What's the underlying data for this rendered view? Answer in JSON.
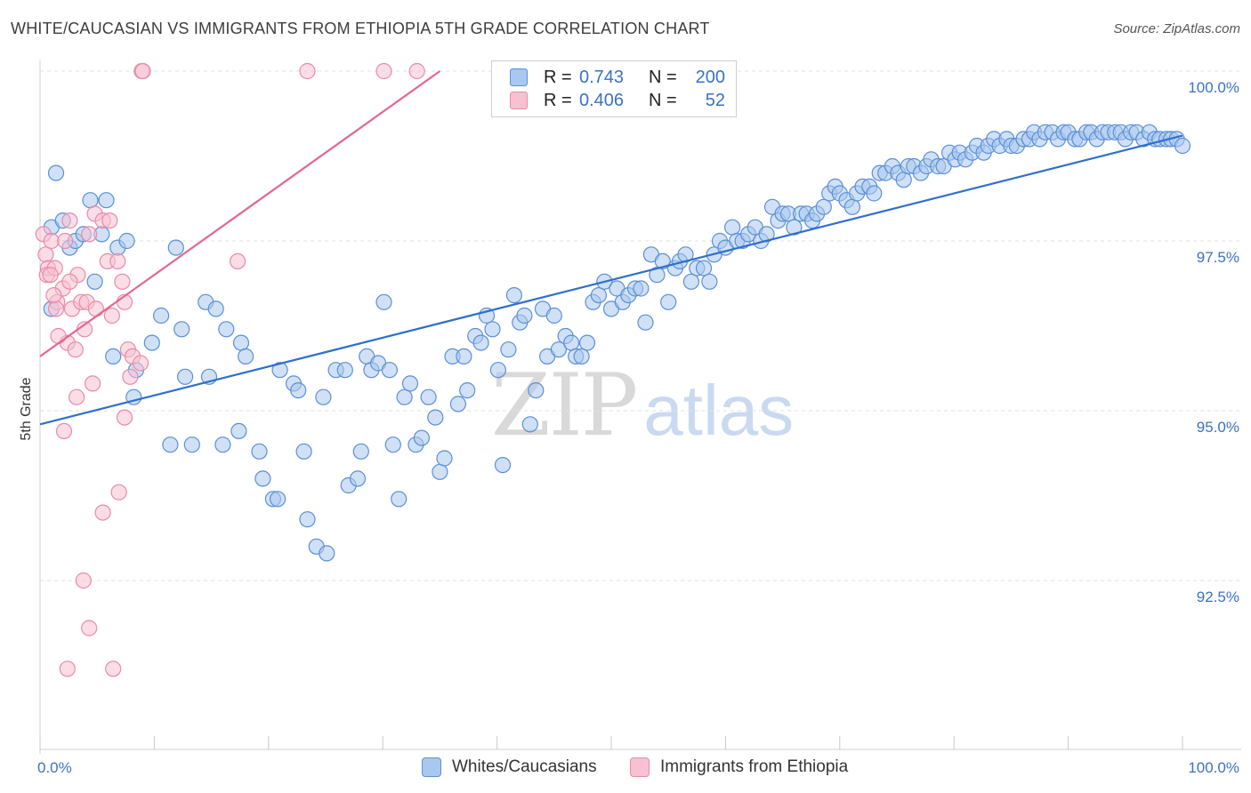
{
  "title": "WHITE/CAUCASIAN VS IMMIGRANTS FROM ETHIOPIA 5TH GRADE CORRELATION CHART",
  "source": "Source: ZipAtlas.com",
  "watermark": {
    "zip": "ZIP",
    "atlas": "atlas"
  },
  "colors": {
    "blue_fill": "#a9c8ee",
    "blue_stroke": "#5b8fd6",
    "blue_line": "#2f6fcc",
    "pink_fill": "#f7c1d1",
    "pink_stroke": "#e98aa8",
    "pink_line": "#e3678f",
    "tick_text": "#3a72c4",
    "grid": "#e2e2e2"
  },
  "legend": {
    "rows": [
      {
        "r_label": "R =",
        "r_value": "0.743",
        "n_label": "N =",
        "n_value": "200",
        "series": "blue"
      },
      {
        "r_label": "R =",
        "r_value": "0.406",
        "n_label": "N =",
        "n_value": "52",
        "series": "pink"
      }
    ]
  },
  "bottom_legend": [
    {
      "label": "Whites/Caucasians",
      "series": "blue"
    },
    {
      "label": "Immigrants from Ethiopia",
      "series": "pink"
    }
  ],
  "chart_data": {
    "type": "scatter",
    "title": "WHITE/CAUCASIAN VS IMMIGRANTS FROM ETHIOPIA 5TH GRADE CORRELATION CHART",
    "xlabel": "",
    "ylabel": "5th Grade",
    "xlim": [
      0,
      100
    ],
    "ylim": [
      90.0,
      100.3
    ],
    "x_tick_labels": [
      "0.0%",
      "100.0%"
    ],
    "y_ticks": [
      92.5,
      95.0,
      97.5,
      100.0
    ],
    "y_tick_labels": [
      "92.5%",
      "95.0%",
      "97.5%",
      "100.0%"
    ],
    "grid": true,
    "series": [
      {
        "name": "Whites/Caucasians",
        "color": "blue",
        "r": 0.743,
        "n": 200,
        "trend": {
          "x": [
            0,
            100
          ],
          "y": [
            94.8,
            99.05
          ]
        },
        "points": [
          [
            1.4,
            98.5
          ],
          [
            1.0,
            97.7
          ],
          [
            2.0,
            97.8
          ],
          [
            2.6,
            97.4
          ],
          [
            3.1,
            97.5
          ],
          [
            3.8,
            97.6
          ],
          [
            4.4,
            98.1
          ],
          [
            5.8,
            98.1
          ],
          [
            5.4,
            97.6
          ],
          [
            6.8,
            97.4
          ],
          [
            7.6,
            97.5
          ],
          [
            4.8,
            96.9
          ],
          [
            1.0,
            96.5
          ],
          [
            6.4,
            95.8
          ],
          [
            8.4,
            95.6
          ],
          [
            8.2,
            95.2
          ],
          [
            9.8,
            96.0
          ],
          [
            10.6,
            96.4
          ],
          [
            11.9,
            97.4
          ],
          [
            12.4,
            96.2
          ],
          [
            11.4,
            94.5
          ],
          [
            12.7,
            95.5
          ],
          [
            13.3,
            94.5
          ],
          [
            14.8,
            95.5
          ],
          [
            14.5,
            96.6
          ],
          [
            15.4,
            96.5
          ],
          [
            16.0,
            94.5
          ],
          [
            16.3,
            96.2
          ],
          [
            17.4,
            94.7
          ],
          [
            17.6,
            96.0
          ],
          [
            18.0,
            95.8
          ],
          [
            19.2,
            94.4
          ],
          [
            19.5,
            94.0
          ],
          [
            20.4,
            93.7
          ],
          [
            20.8,
            93.7
          ],
          [
            21.0,
            95.6
          ],
          [
            22.2,
            95.4
          ],
          [
            22.6,
            95.3
          ],
          [
            23.1,
            94.4
          ],
          [
            23.4,
            93.4
          ],
          [
            24.2,
            93.0
          ],
          [
            24.8,
            95.2
          ],
          [
            25.1,
            92.9
          ],
          [
            25.9,
            95.6
          ],
          [
            26.7,
            95.6
          ],
          [
            27.0,
            93.9
          ],
          [
            27.8,
            94.0
          ],
          [
            28.1,
            94.4
          ],
          [
            28.6,
            95.8
          ],
          [
            29.0,
            95.6
          ],
          [
            29.6,
            95.7
          ],
          [
            30.1,
            96.6
          ],
          [
            30.6,
            95.6
          ],
          [
            30.9,
            94.5
          ],
          [
            31.4,
            93.7
          ],
          [
            31.9,
            95.2
          ],
          [
            32.4,
            95.4
          ],
          [
            32.9,
            94.5
          ],
          [
            33.4,
            94.6
          ],
          [
            34.0,
            95.2
          ],
          [
            34.6,
            94.9
          ],
          [
            35.0,
            94.1
          ],
          [
            35.4,
            94.3
          ],
          [
            36.1,
            95.8
          ],
          [
            36.6,
            95.1
          ],
          [
            37.1,
            95.8
          ],
          [
            37.4,
            95.3
          ],
          [
            38.1,
            96.1
          ],
          [
            38.6,
            96.0
          ],
          [
            39.1,
            96.4
          ],
          [
            39.6,
            96.2
          ],
          [
            40.1,
            95.6
          ],
          [
            40.5,
            94.2
          ],
          [
            41.0,
            95.9
          ],
          [
            41.5,
            96.7
          ],
          [
            42.0,
            96.3
          ],
          [
            42.4,
            96.4
          ],
          [
            42.9,
            94.8
          ],
          [
            43.4,
            95.3
          ],
          [
            44.0,
            96.5
          ],
          [
            44.4,
            95.8
          ],
          [
            45.0,
            96.4
          ],
          [
            45.4,
            95.9
          ],
          [
            46.0,
            96.1
          ],
          [
            46.5,
            96.0
          ],
          [
            46.9,
            95.8
          ],
          [
            47.4,
            95.8
          ],
          [
            47.9,
            96.0
          ],
          [
            48.4,
            96.6
          ],
          [
            48.9,
            96.7
          ],
          [
            49.4,
            96.9
          ],
          [
            50.0,
            96.5
          ],
          [
            50.5,
            96.8
          ],
          [
            51.0,
            96.6
          ],
          [
            51.5,
            96.7
          ],
          [
            52.1,
            96.8
          ],
          [
            52.6,
            96.8
          ],
          [
            53.0,
            96.3
          ],
          [
            53.5,
            97.3
          ],
          [
            54.0,
            97.0
          ],
          [
            54.5,
            97.2
          ],
          [
            55.0,
            96.6
          ],
          [
            55.6,
            97.1
          ],
          [
            56.0,
            97.2
          ],
          [
            56.5,
            97.3
          ],
          [
            57.0,
            96.9
          ],
          [
            57.5,
            97.1
          ],
          [
            58.1,
            97.1
          ],
          [
            58.6,
            96.9
          ],
          [
            59.0,
            97.3
          ],
          [
            59.5,
            97.5
          ],
          [
            60.0,
            97.4
          ],
          [
            60.6,
            97.7
          ],
          [
            61.0,
            97.5
          ],
          [
            61.5,
            97.5
          ],
          [
            62.0,
            97.6
          ],
          [
            62.6,
            97.7
          ],
          [
            63.1,
            97.5
          ],
          [
            63.6,
            97.6
          ],
          [
            64.1,
            98.0
          ],
          [
            64.6,
            97.8
          ],
          [
            65.0,
            97.9
          ],
          [
            65.5,
            97.9
          ],
          [
            66.0,
            97.7
          ],
          [
            66.6,
            97.9
          ],
          [
            67.1,
            97.9
          ],
          [
            67.6,
            97.8
          ],
          [
            68.0,
            97.9
          ],
          [
            68.6,
            98.0
          ],
          [
            69.1,
            98.2
          ],
          [
            69.6,
            98.3
          ],
          [
            70.0,
            98.2
          ],
          [
            70.6,
            98.1
          ],
          [
            71.1,
            98.0
          ],
          [
            71.5,
            98.2
          ],
          [
            72.0,
            98.3
          ],
          [
            72.6,
            98.3
          ],
          [
            73.0,
            98.2
          ],
          [
            73.5,
            98.5
          ],
          [
            74.0,
            98.5
          ],
          [
            74.6,
            98.6
          ],
          [
            75.1,
            98.5
          ],
          [
            75.6,
            98.4
          ],
          [
            76.0,
            98.6
          ],
          [
            76.5,
            98.6
          ],
          [
            77.1,
            98.5
          ],
          [
            77.6,
            98.6
          ],
          [
            78.0,
            98.7
          ],
          [
            78.6,
            98.6
          ],
          [
            79.1,
            98.6
          ],
          [
            79.6,
            98.8
          ],
          [
            80.1,
            98.7
          ],
          [
            80.5,
            98.8
          ],
          [
            81.0,
            98.7
          ],
          [
            81.6,
            98.8
          ],
          [
            82.0,
            98.9
          ],
          [
            82.6,
            98.8
          ],
          [
            83.0,
            98.9
          ],
          [
            83.5,
            99.0
          ],
          [
            84.0,
            98.9
          ],
          [
            84.6,
            99.0
          ],
          [
            85.0,
            98.9
          ],
          [
            85.5,
            98.9
          ],
          [
            86.1,
            99.0
          ],
          [
            86.6,
            99.0
          ],
          [
            87.0,
            99.1
          ],
          [
            87.5,
            99.0
          ],
          [
            88.0,
            99.1
          ],
          [
            88.6,
            99.1
          ],
          [
            89.1,
            99.0
          ],
          [
            89.6,
            99.1
          ],
          [
            90.0,
            99.1
          ],
          [
            90.6,
            99.0
          ],
          [
            91.0,
            99.0
          ],
          [
            91.6,
            99.1
          ],
          [
            92.0,
            99.1
          ],
          [
            92.5,
            99.0
          ],
          [
            93.0,
            99.1
          ],
          [
            93.5,
            99.1
          ],
          [
            94.1,
            99.1
          ],
          [
            94.6,
            99.1
          ],
          [
            95.0,
            99.0
          ],
          [
            95.5,
            99.1
          ],
          [
            96.0,
            99.1
          ],
          [
            96.6,
            99.0
          ],
          [
            97.1,
            99.1
          ],
          [
            97.6,
            99.0
          ],
          [
            98.0,
            99.0
          ],
          [
            98.6,
            99.0
          ],
          [
            99.0,
            99.0
          ],
          [
            99.5,
            99.0
          ],
          [
            100.0,
            98.9
          ]
        ]
      },
      {
        "name": "Immigrants from Ethiopia",
        "color": "pink",
        "r": 0.406,
        "n": 52,
        "trend": {
          "x": [
            0,
            35
          ],
          "y": [
            95.8,
            100.0
          ]
        },
        "points": [
          [
            8.9,
            100.0
          ],
          [
            9.0,
            100.0
          ],
          [
            23.4,
            100.0
          ],
          [
            30.1,
            100.0
          ],
          [
            33.0,
            100.0
          ],
          [
            0.3,
            97.6
          ],
          [
            0.5,
            97.3
          ],
          [
            0.7,
            97.1
          ],
          [
            0.6,
            97.0
          ],
          [
            1.0,
            97.5
          ],
          [
            1.3,
            97.1
          ],
          [
            0.9,
            97.0
          ],
          [
            1.5,
            96.6
          ],
          [
            1.4,
            96.5
          ],
          [
            2.0,
            96.8
          ],
          [
            2.2,
            97.5
          ],
          [
            2.6,
            97.8
          ],
          [
            2.8,
            96.5
          ],
          [
            2.4,
            96.0
          ],
          [
            1.6,
            96.1
          ],
          [
            3.1,
            95.9
          ],
          [
            3.3,
            97.0
          ],
          [
            3.6,
            96.6
          ],
          [
            4.1,
            96.6
          ],
          [
            3.9,
            96.2
          ],
          [
            4.3,
            97.6
          ],
          [
            4.8,
            97.9
          ],
          [
            5.5,
            97.8
          ],
          [
            6.1,
            97.8
          ],
          [
            5.9,
            97.2
          ],
          [
            6.8,
            97.2
          ],
          [
            7.2,
            96.9
          ],
          [
            7.4,
            96.6
          ],
          [
            6.3,
            96.4
          ],
          [
            7.7,
            95.9
          ],
          [
            8.1,
            95.8
          ],
          [
            8.8,
            95.7
          ],
          [
            7.9,
            95.5
          ],
          [
            4.6,
            95.4
          ],
          [
            3.2,
            95.2
          ],
          [
            7.4,
            94.9
          ],
          [
            2.1,
            94.7
          ],
          [
            6.9,
            93.8
          ],
          [
            5.5,
            93.5
          ],
          [
            3.8,
            92.5
          ],
          [
            4.3,
            91.8
          ],
          [
            2.4,
            91.2
          ],
          [
            6.4,
            91.2
          ],
          [
            17.3,
            97.2
          ],
          [
            2.6,
            96.9
          ],
          [
            1.2,
            96.7
          ],
          [
            4.9,
            96.5
          ]
        ]
      }
    ]
  }
}
